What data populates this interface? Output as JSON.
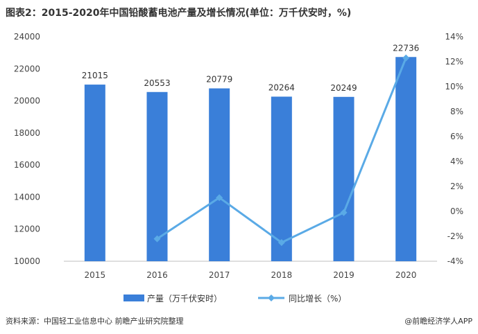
{
  "title": "图表2：2015-2020年中国铅酸蓄电池产量及增长情况(单位：万千伏安时，%)",
  "source_left": "资料来源：中国轻工业信息中心 前瞻产业研究院整理",
  "source_right": "@前瞻经济学人APP",
  "colors": {
    "bar": "#3a7fd9",
    "line": "#5aaae6",
    "axis": "#bfbfbf"
  },
  "chart_data": {
    "type": "bar+line",
    "categories": [
      "2015",
      "2016",
      "2017",
      "2018",
      "2019",
      "2020"
    ],
    "series": [
      {
        "name": "产量（万千伏安时）",
        "type": "bar",
        "axis": "left",
        "values": [
          21015,
          20553,
          20779,
          20264,
          20249,
          22736
        ],
        "labels": [
          "21015",
          "20553",
          "20779",
          "20264",
          "20249",
          "22736"
        ]
      },
      {
        "name": "同比增长（%）",
        "type": "line",
        "axis": "right",
        "values": [
          null,
          -2.2,
          1.1,
          -2.5,
          -0.1,
          12.3
        ]
      }
    ],
    "y_left": {
      "min": 10000,
      "max": 24000,
      "step": 2000,
      "ticks": [
        "10000",
        "12000",
        "14000",
        "16000",
        "18000",
        "20000",
        "22000",
        "24000"
      ]
    },
    "y_right": {
      "min": -4,
      "max": 14,
      "step": 2,
      "ticks": [
        "-4%",
        "-2%",
        "0%",
        "2%",
        "4%",
        "6%",
        "8%",
        "10%",
        "12%",
        "14%"
      ]
    },
    "legend_position": "bottom",
    "grid": false
  }
}
